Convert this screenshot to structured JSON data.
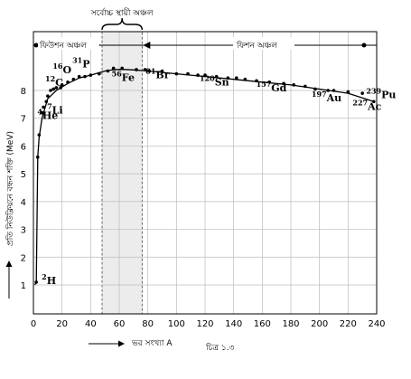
{
  "chart_data": {
    "type": "line",
    "xlabel": "ভর সংখ্যা A",
    "ylabel": "প্রতি নিউক্লিয়নে বন্ধন শক্তি (MeV)",
    "caption": "চিত্র ১.৩",
    "xlim": [
      0,
      240
    ],
    "ylim": [
      0,
      9.5
    ],
    "x_ticks": [
      "0",
      "20",
      "40",
      "60",
      "80",
      "100",
      "120",
      "140",
      "160",
      "180",
      "200",
      "220",
      "240"
    ],
    "y_ticks": [
      "1",
      "2",
      "3",
      "4",
      "5",
      "6",
      "7",
      "8"
    ],
    "grid": true,
    "regions": {
      "fusion_label": "ফিউশন অঞ্চল",
      "fission_label": "ফিশন অঞ্চল",
      "most_stable_label": "সর্বোচ্চ স্থায়ী অঞ্চল",
      "most_stable_range": [
        48,
        76
      ]
    },
    "curve": {
      "x": [
        1,
        2,
        3,
        4,
        6,
        10,
        16,
        24,
        32,
        40,
        50,
        56,
        62,
        70,
        80,
        90,
        100,
        120,
        140,
        160,
        180,
        200,
        220,
        238
      ],
      "y": [
        1.0,
        1.1,
        5.6,
        6.3,
        7.0,
        7.7,
        8.0,
        8.25,
        8.45,
        8.55,
        8.7,
        8.75,
        8.76,
        8.74,
        8.7,
        8.65,
        8.6,
        8.5,
        8.4,
        8.3,
        8.2,
        8.05,
        7.9,
        7.6
      ]
    },
    "points": {
      "x": [
        2,
        3,
        4,
        6,
        7,
        9,
        10,
        12,
        14,
        16,
        19,
        20,
        24,
        28,
        32,
        36,
        40,
        46,
        52,
        56,
        62,
        72,
        78,
        81,
        90,
        100,
        108,
        115,
        120,
        128,
        136,
        142,
        148,
        156,
        165,
        175,
        182,
        190,
        197,
        206,
        210,
        220,
        230,
        238
      ],
      "y": [
        1.1,
        5.6,
        6.4,
        7.2,
        7.4,
        7.6,
        7.8,
        8.0,
        8.05,
        8.1,
        8.1,
        8.2,
        8.3,
        8.4,
        8.5,
        8.5,
        8.55,
        8.6,
        8.7,
        8.8,
        8.8,
        8.75,
        8.75,
        8.7,
        8.7,
        8.6,
        8.6,
        8.55,
        8.55,
        8.5,
        8.45,
        8.45,
        8.4,
        8.35,
        8.3,
        8.25,
        8.2,
        8.15,
        8.05,
        8.0,
        8.0,
        7.95,
        7.9,
        7.6
      ]
    },
    "labels": [
      {
        "mass": "2",
        "element": "H",
        "x": 2,
        "y": 1.1
      },
      {
        "mass": "4",
        "element": "He",
        "x": 4,
        "y": 7.3
      },
      {
        "mass": "7",
        "element": "Li",
        "x": 7,
        "y": 7.5
      },
      {
        "mass": "12",
        "element": "C",
        "x": 12,
        "y": 8.1
      },
      {
        "mass": "16",
        "element": "O",
        "x": 16,
        "y": 8.3
      },
      {
        "mass": "31",
        "element": "P",
        "x": 31,
        "y": 8.5
      },
      {
        "mass": "56",
        "element": "Fe",
        "x": 56,
        "y": 8.8
      },
      {
        "mass": "81",
        "element": "Br",
        "x": 81,
        "y": 8.7
      },
      {
        "mass": "120",
        "element": "Sn",
        "x": 120,
        "y": 8.5
      },
      {
        "mass": "157",
        "element": "Gd",
        "x": 157,
        "y": 8.3
      },
      {
        "mass": "197",
        "element": "Au",
        "x": 197,
        "y": 8.0
      },
      {
        "mass": "227",
        "element": "Ac",
        "x": 227,
        "y": 7.75
      },
      {
        "mass": "239",
        "element": "Pu",
        "x": 239,
        "y": 7.6
      }
    ]
  }
}
